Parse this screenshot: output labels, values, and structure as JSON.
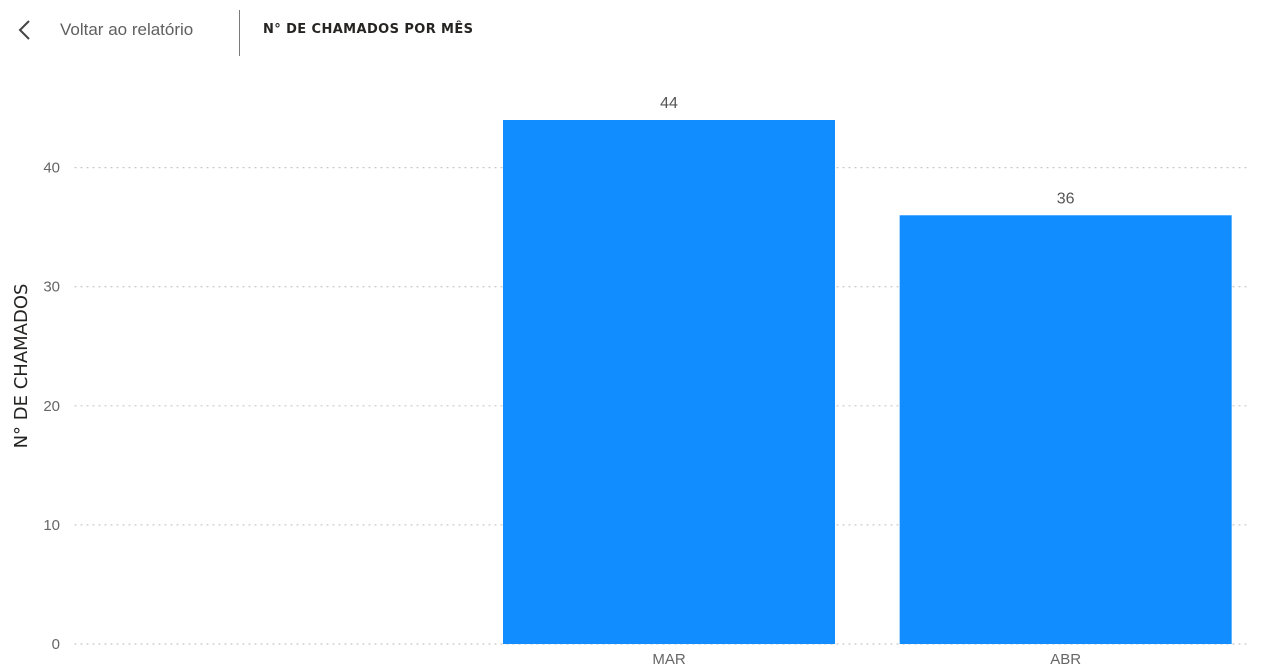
{
  "header": {
    "back_label": "Voltar ao relatório",
    "back_icon": "chevron-left-icon",
    "title": "N° DE CHAMADOS POR MÊS"
  },
  "chart_data": {
    "type": "bar",
    "categories": [
      "",
      "MAR",
      "ABR"
    ],
    "values": [
      null,
      44,
      36
    ],
    "ylabel": "N° DE CHAMADOS",
    "xlabel": "",
    "ylim": [
      0,
      44
    ],
    "yticks": [
      0,
      10,
      20,
      30,
      40
    ],
    "grid": true,
    "data_labels": true,
    "bar_color": "#118DFF"
  }
}
